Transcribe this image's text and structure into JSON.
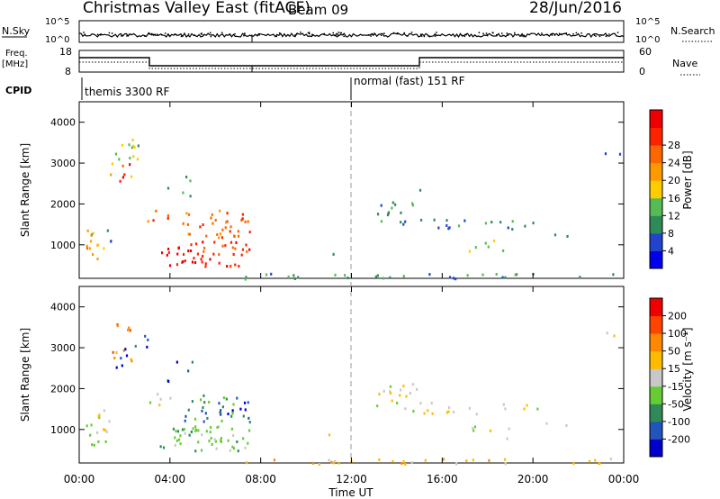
{
  "header": {
    "station": "Christmas Valley East (fitACF)",
    "beam": "Beam 09",
    "date": "28/Jun/2016"
  },
  "nsky": {
    "label": "N.Sky",
    "ticks": [
      "10^5",
      "10^0"
    ]
  },
  "nsearch": {
    "label": "N.Search",
    "ticks": [
      "10^5",
      "10^0"
    ]
  },
  "freq": {
    "label_line1": "Freq.",
    "label_line2": "[MHz]",
    "ticks": [
      "18",
      "8"
    ]
  },
  "nave": {
    "label": "Nave",
    "ticks": [
      "60",
      "0"
    ]
  },
  "cpid": {
    "label": "CPID",
    "segments": [
      {
        "label": "themis 3300 RF",
        "start": "00:00"
      },
      {
        "label": "normal (fast) 151 RF",
        "start": "12:00"
      }
    ]
  },
  "xaxis": {
    "label": "Time UT",
    "ticks": [
      "00:00",
      "04:00",
      "08:00",
      "12:00",
      "16:00",
      "20:00",
      "00:00"
    ]
  },
  "chart_data": [
    {
      "type": "heatmap",
      "ylabel": "Slant Range [km]",
      "ylim": [
        180,
        4500
      ],
      "yticks": [
        "1000",
        "2000",
        "3000",
        "4000"
      ],
      "xlim": [
        "00:00",
        "24:00"
      ],
      "colorbar": {
        "label": "Power [dB]",
        "ticks": [
          "4",
          "8",
          "12",
          "16",
          "20",
          "24",
          "28"
        ],
        "colors": [
          "#0000ee",
          "#2244cc",
          "#2e8b57",
          "#55bb55",
          "#ffcc00",
          "#ff9900",
          "#ff6600",
          "#ff2200",
          "#ee0000"
        ]
      }
    },
    {
      "type": "heatmap",
      "ylabel": "Slant Range [km]",
      "ylim": [
        180,
        4500
      ],
      "yticks": [
        "1000",
        "2000",
        "3000",
        "4000"
      ],
      "xlim": [
        "00:00",
        "24:00"
      ],
      "colorbar": {
        "label": "Velocity [m s⁻¹]",
        "ticks": [
          "200",
          "100",
          "50",
          "15",
          "-15",
          "-50",
          "-100",
          "-200"
        ],
        "colors": [
          "#0000cc",
          "#2255bb",
          "#2e8b57",
          "#66cc33",
          "#c8c8c8",
          "#ffbb00",
          "#ff8800",
          "#ff4400",
          "#ee0000"
        ]
      }
    }
  ]
}
